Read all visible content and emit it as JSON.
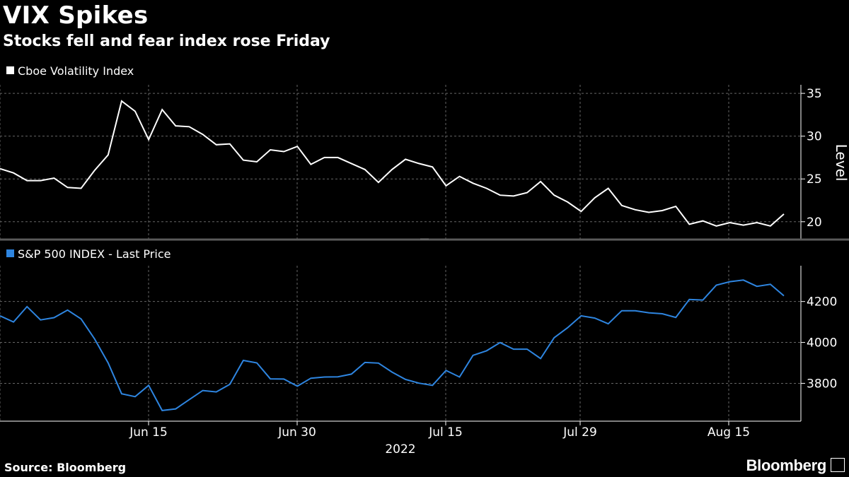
{
  "header": {
    "title": "VIX Spikes",
    "subtitle": "Stocks fell and fear index rose Friday"
  },
  "footer": {
    "source": "Source: Bloomberg",
    "brand": "Bloomberg"
  },
  "chart_data": [
    {
      "type": "line",
      "title": "",
      "legend": "Cboe Volatility Index",
      "ylabel": "Level",
      "ylim": [
        18,
        36
      ],
      "yticks": [
        20,
        25,
        30,
        35
      ],
      "color": "#ffffff",
      "grid": true,
      "series": [
        {
          "name": "Cboe Volatility Index",
          "values": [
            26.2,
            25.7,
            24.8,
            24.8,
            25.1,
            24.0,
            23.9,
            26.0,
            27.8,
            34.1,
            32.9,
            29.6,
            33.1,
            31.2,
            31.1,
            30.2,
            29.0,
            29.1,
            27.2,
            27.0,
            28.4,
            28.2,
            28.8,
            26.7,
            27.5,
            27.5,
            26.8,
            26.1,
            24.6,
            26.1,
            27.3,
            26.8,
            26.4,
            24.2,
            25.3,
            24.5,
            23.9,
            23.1,
            23.0,
            23.4,
            24.7,
            23.1,
            22.3,
            21.2,
            22.8,
            23.9,
            21.9,
            21.4,
            21.1,
            21.3,
            21.8,
            19.7,
            20.1,
            19.5,
            19.9,
            19.6,
            19.9,
            19.5,
            20.9
          ]
        }
      ]
    },
    {
      "type": "line",
      "title": "",
      "legend": "S&P 500 INDEX - Last Price",
      "ylim": [
        3615,
        4375
      ],
      "yticks": [
        3800,
        4000,
        4200
      ],
      "color": "#2e85e0",
      "grid": true,
      "series": [
        {
          "name": "S&P 500 INDEX - Last Price",
          "values": [
            4130,
            4100,
            4175,
            4110,
            4121,
            4158,
            4115,
            4017,
            3900,
            3749,
            3735,
            3790,
            3667,
            3675,
            3720,
            3765,
            3758,
            3795,
            3912,
            3900,
            3822,
            3821,
            3786,
            3825,
            3831,
            3832,
            3845,
            3902,
            3899,
            3855,
            3819,
            3801,
            3790,
            3863,
            3831,
            3937,
            3959,
            3999,
            3967,
            3967,
            3921,
            4023,
            4072,
            4130,
            4119,
            4091,
            4155,
            4155,
            4145,
            4140,
            4122,
            4210,
            4207,
            4280,
            4297,
            4305,
            4274,
            4284,
            4228
          ]
        }
      ],
      "categories_labels": [
        "Jun 15",
        "Jun 30",
        "Jul 15",
        "Jul 29",
        "Aug 15"
      ],
      "xyear": "2022"
    }
  ]
}
